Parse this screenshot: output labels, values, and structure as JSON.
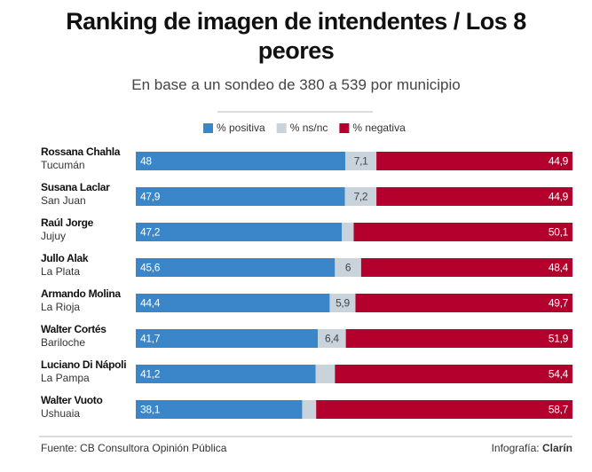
{
  "chart_data": {
    "type": "stacked-bar-horizontal",
    "title": "Ranking de imagen de intendentes / Los 8 peores",
    "subtitle": "En base a un sondeo de 380 a 539 por municipio",
    "categories": [
      "Rossana Chahla",
      "Susana Laclar",
      "Raúl Jorge",
      "Jullo Alak",
      "Armando Molina",
      "Walter Cortés",
      "Luciano Di Nápoli",
      "Walter Vuoto"
    ],
    "locations": [
      "Tucumán",
      "San Juan",
      "Jujuy",
      "La Plata",
      "La Rioja",
      "Bariloche",
      "La Pampa",
      "Ushuaia"
    ],
    "xlim": [
      0,
      100
    ],
    "legend": "top",
    "series": [
      {
        "name": "% positiva",
        "color": "#3a86c8",
        "label_color": "#ffffff",
        "values": [
          48,
          47.9,
          47.2,
          45.6,
          44.4,
          41.7,
          41.2,
          38.1
        ],
        "value_labels": [
          "48",
          "47,9",
          "47,2",
          "45,6",
          "44,4",
          "41,7",
          "41,2",
          "38,1"
        ]
      },
      {
        "name": "% ns/nc",
        "color": "#c9d3dc",
        "label_color": "#444444",
        "values": [
          7.1,
          7.2,
          2.7,
          6,
          5.9,
          6.4,
          4.4,
          3.2
        ],
        "value_labels": [
          "7,1",
          "7,2",
          null,
          "6",
          "5,9",
          "6,4",
          null,
          null
        ]
      },
      {
        "name": "% negativa",
        "color": "#b4002d",
        "label_color": "#ffffff",
        "values": [
          44.9,
          44.9,
          50.1,
          48.4,
          49.7,
          51.9,
          54.4,
          58.7
        ],
        "value_labels": [
          "44,9",
          "44,9",
          "50,1",
          "48,4",
          "49,7",
          "51,9",
          "54,4",
          "58,7"
        ]
      }
    ]
  },
  "footer": {
    "source": "Fuente: CB Consultora Opinión Pública",
    "credit_label": "Infografía:",
    "credit_name": "Clarín"
  }
}
